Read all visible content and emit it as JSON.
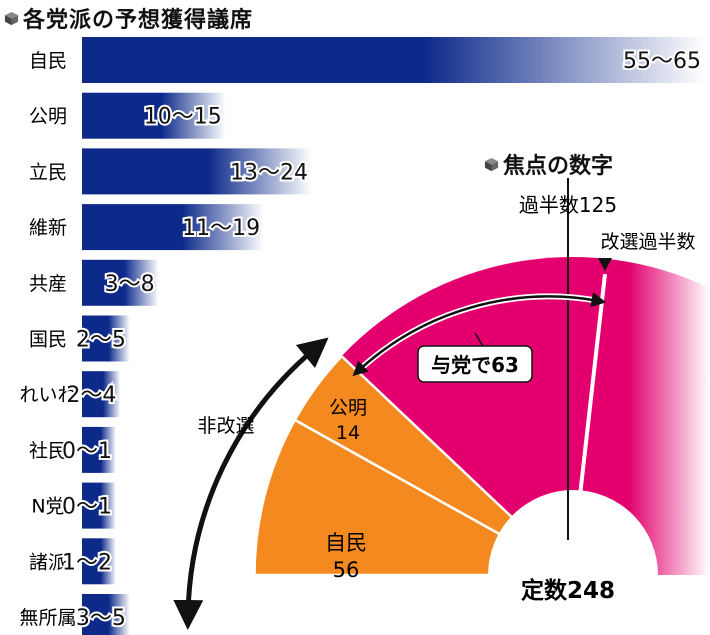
{
  "header": {
    "title": "各党派の予想獲得議席"
  },
  "chart_data": [
    {
      "type": "bar",
      "orientation": "horizontal",
      "title": "各党派の予想獲得議席",
      "categories": [
        "自民",
        "公明",
        "立民",
        "維新",
        "共産",
        "国民",
        "れいわ",
        "社民",
        "N党",
        "諸派",
        "無所属"
      ],
      "ranges": [
        [
          55,
          65
        ],
        [
          10,
          15
        ],
        [
          13,
          24
        ],
        [
          11,
          19
        ],
        [
          3,
          8
        ],
        [
          2,
          5
        ],
        [
          2,
          4
        ],
        [
          0,
          1
        ],
        [
          0,
          1
        ],
        [
          1,
          2
        ],
        [
          3,
          5
        ]
      ],
      "value_labels": [
        "55〜65",
        "10〜15",
        "13〜24",
        "11〜19",
        "3〜8",
        "2〜5",
        "2〜4",
        "0〜1",
        "0〜1",
        "1〜2",
        "3〜5"
      ],
      "xlim": [
        0,
        65
      ],
      "bar_color": "#0d2a8a"
    },
    {
      "type": "pie",
      "title": "焦点の数字",
      "total": 248,
      "total_label": "定数248",
      "slices": [
        {
          "name": "自民",
          "value": 56,
          "label_name": "自民",
          "label_value": "56",
          "color": "#f4891f"
        },
        {
          "name": "公明",
          "value": 14,
          "label_name": "公明",
          "label_value": "14",
          "color": "#f4891f"
        }
      ],
      "markers": [
        {
          "label": "過半数125",
          "value": 125
        },
        {
          "label": "改選過半数",
          "value": 63
        }
      ],
      "annotations": [
        {
          "label": "与党で63",
          "value": 63
        },
        {
          "label": "非改選",
          "value": 70
        }
      ],
      "colors": {
        "non_renewal": "#f4891f",
        "ruling_needed": "#e3006e",
        "gradient_end": "#ffffff"
      }
    }
  ]
}
